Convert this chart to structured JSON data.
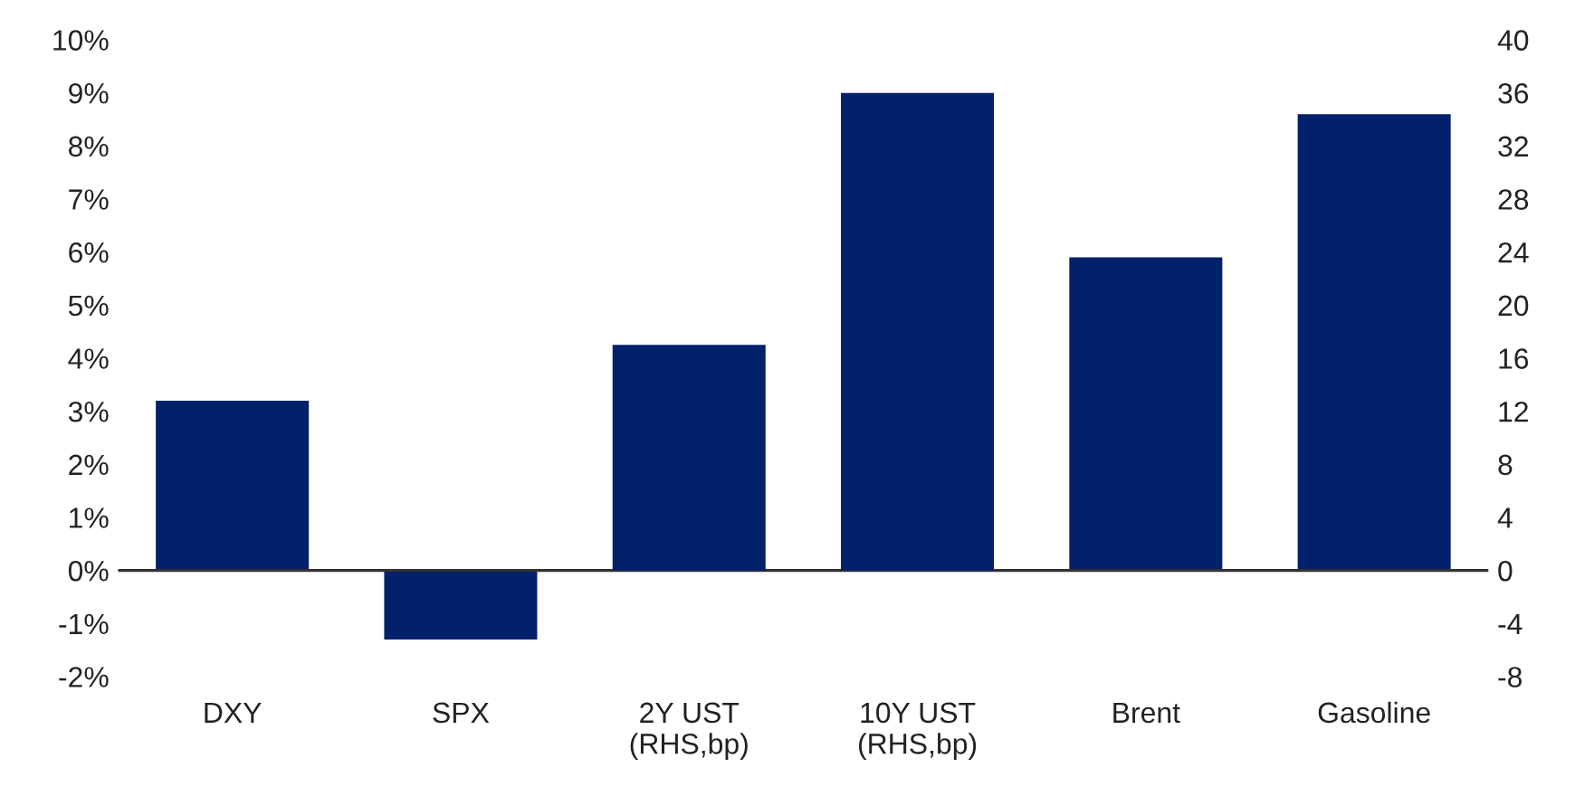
{
  "chart_data": {
    "type": "bar",
    "categories": [
      "DXY",
      "SPX",
      "2Y UST\n(RHS,bp)",
      "10Y UST\n(RHS,bp)",
      "Brent",
      "Gasoline"
    ],
    "series": [
      {
        "color": "#03216a",
        "values": [
          3.2,
          -1.3,
          null,
          null,
          5.9,
          8.6
        ]
      },
      {
        "color": "#03216a",
        "axis": "y2",
        "values": [
          null,
          null,
          17,
          36,
          null,
          null
        ]
      }
    ],
    "ylim": [
      -2,
      10
    ],
    "yticks": [
      {
        "value": -2,
        "label": "-2%"
      },
      {
        "value": -1,
        "label": "-1%"
      },
      {
        "value": 0,
        "label": "0%"
      },
      {
        "value": 1,
        "label": "1%"
      },
      {
        "value": 2,
        "label": "2%"
      },
      {
        "value": 3,
        "label": "3%"
      },
      {
        "value": 4,
        "label": "4%"
      },
      {
        "value": 5,
        "label": "5%"
      },
      {
        "value": 6,
        "label": "6%"
      },
      {
        "value": 7,
        "label": "7%"
      },
      {
        "value": 8,
        "label": "8%"
      },
      {
        "value": 9,
        "label": "9%"
      },
      {
        "value": 10,
        "label": "10%"
      }
    ],
    "y2lim": [
      -8,
      40
    ],
    "y2ticks": [
      -8,
      -4,
      0,
      4,
      8,
      12,
      16,
      20,
      24,
      28,
      32,
      36,
      40
    ],
    "ref_lines": [
      {
        "axis": "y",
        "value": 0,
        "color": "#333333"
      }
    ],
    "grid": false,
    "legend": false
  }
}
